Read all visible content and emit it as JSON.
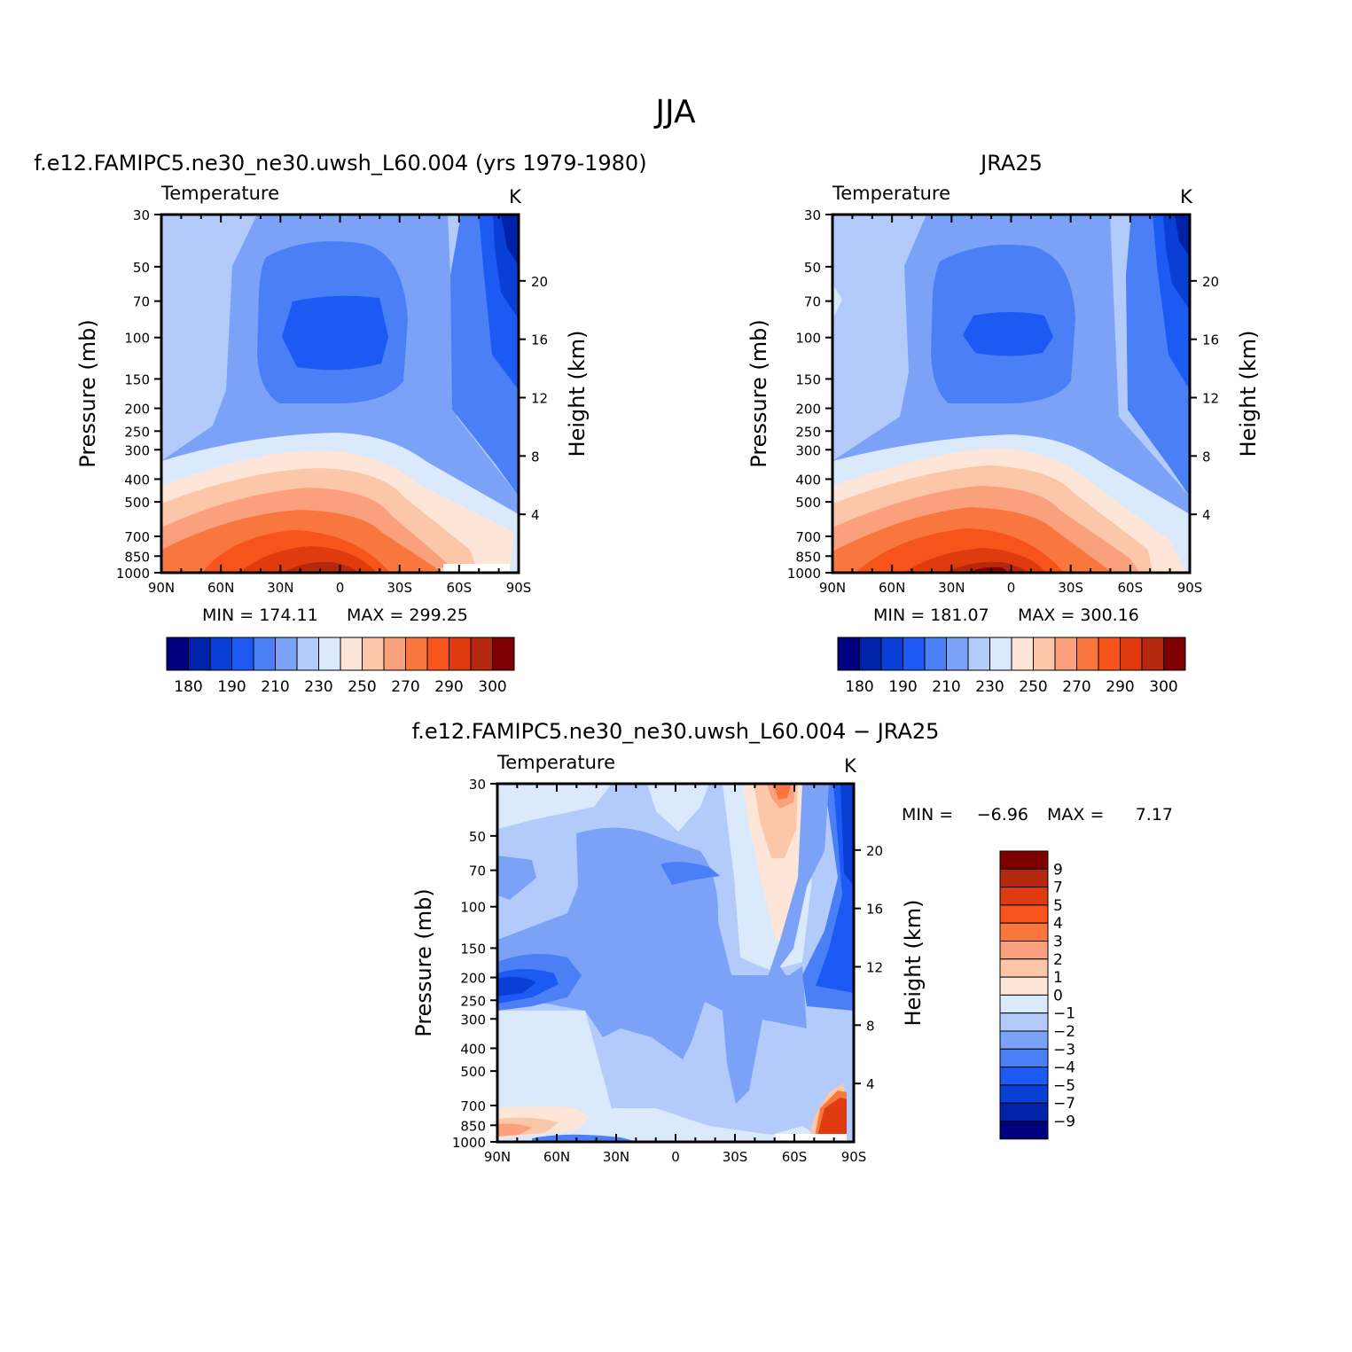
{
  "figure_title": "JJA",
  "ramp_cool": [
    "#000080",
    "#0022a8",
    "#0a3fd6",
    "#1c5af3",
    "#4a7ff5",
    "#7ba2f7",
    "#b3cbfb",
    "#dbe9fd"
  ],
  "ramp_warm": [
    "#fde6d8",
    "#fcc6a8",
    "#fba07c",
    "#f9773f",
    "#f6541b",
    "#e03b0e",
    "#b52810",
    "#7f0000"
  ],
  "chart_data": [
    {
      "type": "contour",
      "title": "f.e12.FAMIPC5.ne30_ne30.uwsh_L60.004 (yrs 1979-1980)",
      "variable": "Temperature",
      "units": "K",
      "ylabel": "Pressure (mb)",
      "y2label": "Height (km)",
      "pressure_ticks": [
        30,
        50,
        70,
        100,
        150,
        200,
        250,
        300,
        400,
        500,
        700,
        850,
        1000
      ],
      "pressure_tick_labels": [
        "30",
        "50",
        "70",
        "100",
        "150",
        "200",
        "250",
        "300",
        "400",
        "500",
        "700",
        "850",
        "1000"
      ],
      "height_ticks": [
        20,
        16,
        12,
        8,
        4
      ],
      "height_tick_labels": [
        "20",
        "16",
        "12",
        "8",
        "4"
      ],
      "lat_ticks": [
        90,
        60,
        30,
        0,
        -30,
        -60,
        -90
      ],
      "lat_tick_labels": [
        "90N",
        "60N",
        "30N",
        "0",
        "30S",
        "60S",
        "90S"
      ],
      "min_label": "MIN =  174.11",
      "max_label": "MAX =  299.25",
      "levels": [
        180,
        190,
        200,
        210,
        220,
        230,
        240,
        250,
        260,
        270,
        280,
        290,
        295,
        300
      ],
      "colorbar_labels": [
        "180",
        "190",
        "210",
        "230",
        "250",
        "270",
        "290",
        "300"
      ]
    },
    {
      "type": "contour",
      "title": "JRA25",
      "variable": "Temperature",
      "units": "K",
      "ylabel": "Pressure (mb)",
      "y2label": "Height (km)",
      "pressure_ticks": [
        30,
        50,
        70,
        100,
        150,
        200,
        250,
        300,
        400,
        500,
        700,
        850,
        1000
      ],
      "pressure_tick_labels": [
        "30",
        "50",
        "70",
        "100",
        "150",
        "200",
        "250",
        "300",
        "400",
        "500",
        "700",
        "850",
        "1000"
      ],
      "height_ticks": [
        20,
        16,
        12,
        8,
        4
      ],
      "height_tick_labels": [
        "20",
        "16",
        "12",
        "8",
        "4"
      ],
      "lat_ticks": [
        90,
        60,
        30,
        0,
        -30,
        -60,
        -90
      ],
      "lat_tick_labels": [
        "90N",
        "60N",
        "30N",
        "0",
        "30S",
        "60S",
        "90S"
      ],
      "min_label": "MIN =  181.07",
      "max_label": "MAX =  300.16",
      "levels": [
        180,
        190,
        200,
        210,
        220,
        230,
        240,
        250,
        260,
        270,
        280,
        290,
        295,
        300
      ],
      "colorbar_labels": [
        "180",
        "190",
        "210",
        "230",
        "250",
        "270",
        "290",
        "300"
      ]
    },
    {
      "type": "contour",
      "title": "f.e12.FAMIPC5.ne30_ne30.uwsh_L60.004 − JRA25",
      "variable": "Temperature",
      "units": "K",
      "ylabel": "Pressure (mb)",
      "y2label": "Height (km)",
      "pressure_ticks": [
        30,
        50,
        70,
        100,
        150,
        200,
        250,
        300,
        400,
        500,
        700,
        850,
        1000
      ],
      "pressure_tick_labels": [
        "30",
        "50",
        "70",
        "100",
        "150",
        "200",
        "250",
        "300",
        "400",
        "500",
        "700",
        "850",
        "1000"
      ],
      "height_ticks": [
        20,
        16,
        12,
        8,
        4
      ],
      "height_tick_labels": [
        "20",
        "16",
        "12",
        "8",
        "4"
      ],
      "lat_ticks": [
        90,
        60,
        30,
        0,
        -30,
        -60,
        -90
      ],
      "lat_tick_labels": [
        "90N",
        "60N",
        "30N",
        "0",
        "30S",
        "60S",
        "90S"
      ],
      "min_label": "MIN =",
      "min_value": "−6.96",
      "max_label": "MAX =",
      "max_value": "7.17",
      "levels": [
        -9,
        -7,
        -5,
        -4,
        -3,
        -2,
        -1,
        0,
        1,
        2,
        3,
        4,
        5,
        7,
        9
      ],
      "colorbar_labels": [
        "9",
        "7",
        "5",
        "4",
        "3",
        "2",
        "1",
        "0",
        "−1",
        "−2",
        "−3",
        "−4",
        "−5",
        "−7",
        "−9"
      ]
    }
  ]
}
